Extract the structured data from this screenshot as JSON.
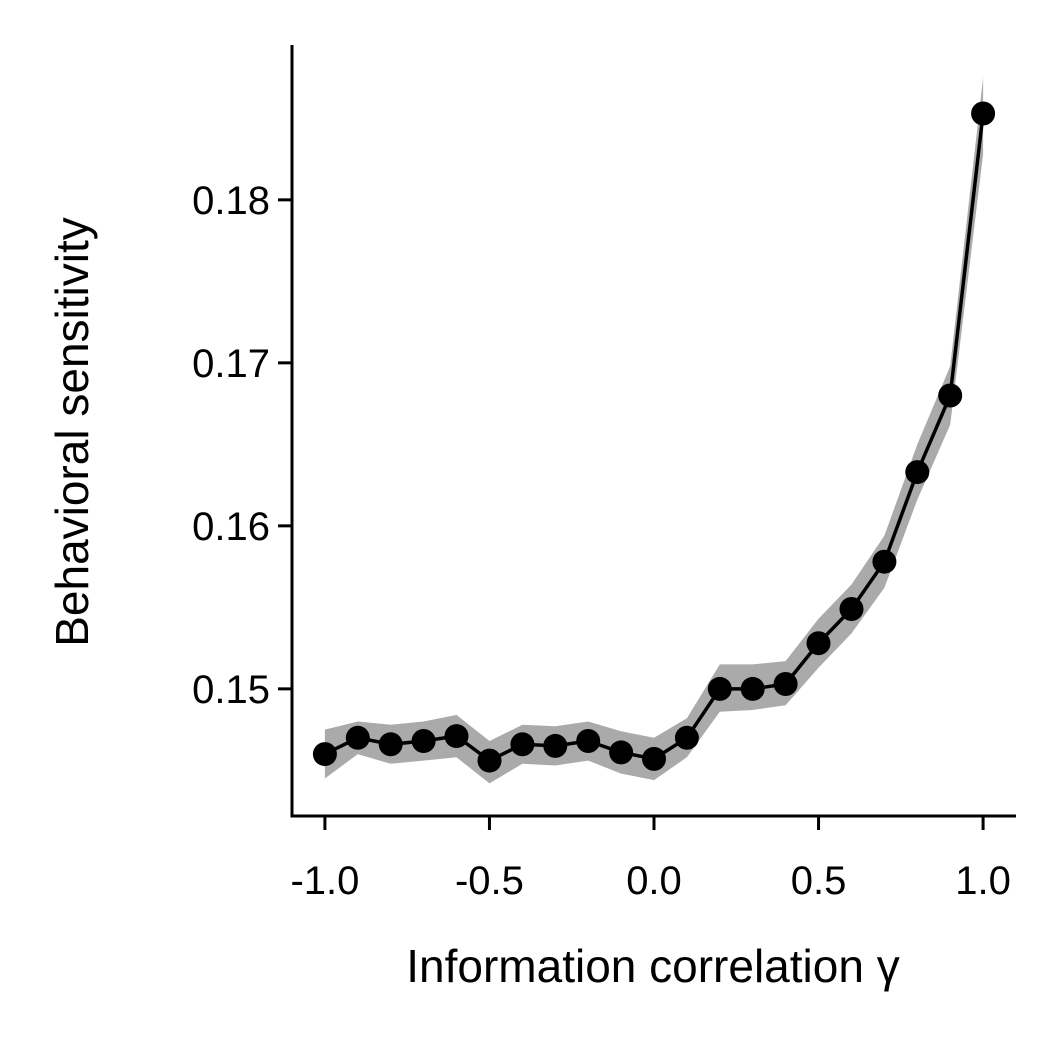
{
  "chart_data": {
    "type": "line",
    "xlabel": "Information correlation γ",
    "ylabel": "Behavioral sensitivity",
    "xlim": [
      -1.1,
      1.1
    ],
    "ylim": [
      0.1422,
      0.1895
    ],
    "xticks": [
      -1.0,
      -0.5,
      0.0,
      0.5,
      1.0
    ],
    "xtick_labels": [
      "-1.0",
      "-0.5",
      "0.0",
      "0.5",
      "1.0"
    ],
    "yticks": [
      0.15,
      0.16,
      0.17,
      0.18
    ],
    "ytick_labels": [
      "0.15",
      "0.16",
      "0.17",
      "0.18"
    ],
    "grid": false,
    "colors": {
      "line": "#000000",
      "band": "#aaaaaa"
    },
    "series": [
      {
        "x": [
          -1.0,
          -0.9,
          -0.8,
          -0.7,
          -0.6,
          -0.5,
          -0.4,
          -0.3,
          -0.2,
          -0.1,
          0.0,
          0.1,
          0.2,
          0.3,
          0.4,
          0.5,
          0.6,
          0.7,
          0.8,
          0.9,
          1.0
        ],
        "y": [
          0.146,
          0.147,
          0.1466,
          0.1468,
          0.1471,
          0.1456,
          0.1466,
          0.1465,
          0.1468,
          0.1461,
          0.1457,
          0.147,
          0.15,
          0.15,
          0.1503,
          0.1528,
          0.1549,
          0.1578,
          0.1633,
          0.168,
          0.1853
        ],
        "lower": [
          0.1445,
          0.146,
          0.1454,
          0.1456,
          0.1458,
          0.1442,
          0.1454,
          0.1453,
          0.1456,
          0.1448,
          0.1444,
          0.1458,
          0.1486,
          0.1487,
          0.149,
          0.1513,
          0.1534,
          0.1562,
          0.1616,
          0.1662,
          0.1828
        ],
        "upper": [
          0.1475,
          0.148,
          0.1478,
          0.148,
          0.1484,
          0.1468,
          0.1478,
          0.1477,
          0.148,
          0.1474,
          0.147,
          0.1482,
          0.1515,
          0.1515,
          0.1517,
          0.1543,
          0.1564,
          0.1594,
          0.165,
          0.1698,
          0.1875
        ]
      }
    ]
  }
}
